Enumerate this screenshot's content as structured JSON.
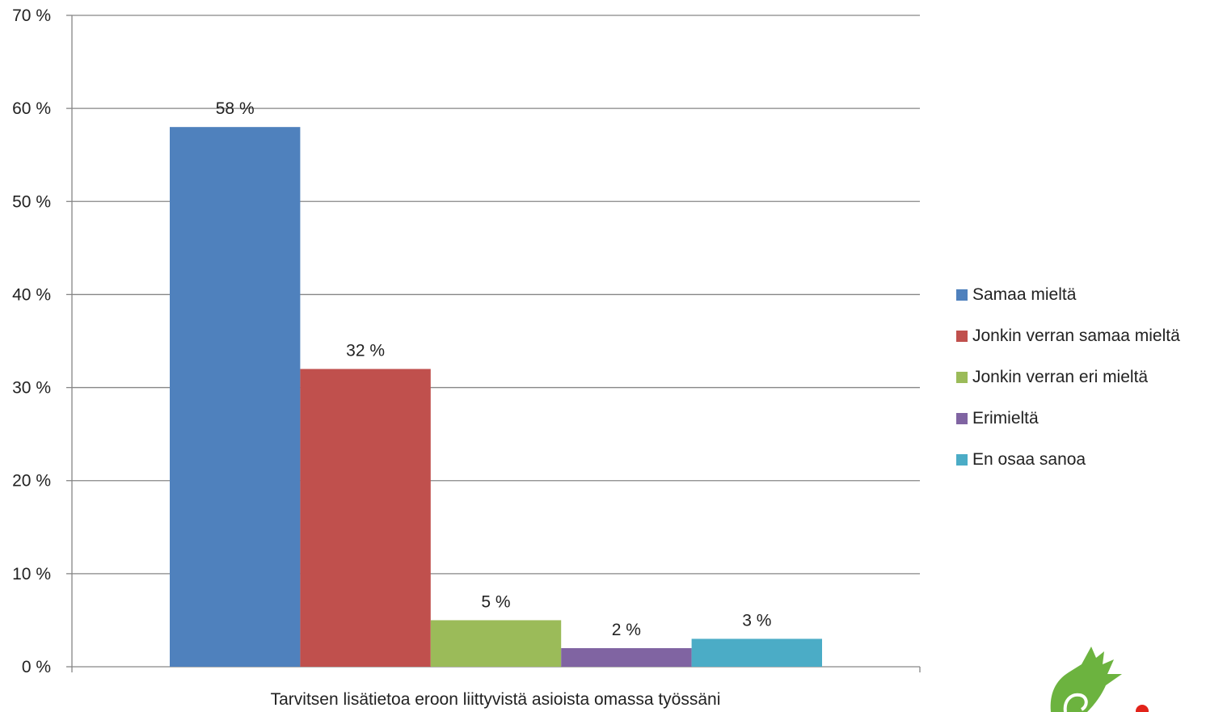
{
  "chart_data": {
    "type": "bar",
    "categories": [
      "Tarvitsen lisätietoa eroon liittyvistä asioista omassa työssäni"
    ],
    "series": [
      {
        "name": "Samaa mieltä",
        "values": [
          58
        ],
        "label": "58 %",
        "color": "#4F81BD"
      },
      {
        "name": "Jonkin verran samaa mieltä",
        "values": [
          32
        ],
        "label": "32 %",
        "color": "#C0504D"
      },
      {
        "name": "Jonkin verran eri mieltä",
        "values": [
          5
        ],
        "label": "5 %",
        "color": "#9BBB59"
      },
      {
        "name": "Erimieltä",
        "values": [
          2
        ],
        "label": "2 %",
        "color": "#8064A2"
      },
      {
        "name": "En osaa sanoa",
        "values": [
          3
        ],
        "label": "3 %",
        "color": "#4BACC6"
      }
    ],
    "ylim": [
      0,
      70
    ],
    "yticks": [
      0,
      10,
      20,
      30,
      40,
      50,
      60,
      70
    ],
    "ytick_labels": [
      "0 %",
      "10 %",
      "20 %",
      "30 %",
      "40 %",
      "50 %",
      "60 %",
      "70 %"
    ],
    "grid": true,
    "legend_position": "right",
    "xlabel": "",
    "ylabel": ""
  },
  "logo": {
    "icon": "green-gecko-hand-logo",
    "colors": [
      "#6CB33F",
      "#E2231A"
    ]
  }
}
